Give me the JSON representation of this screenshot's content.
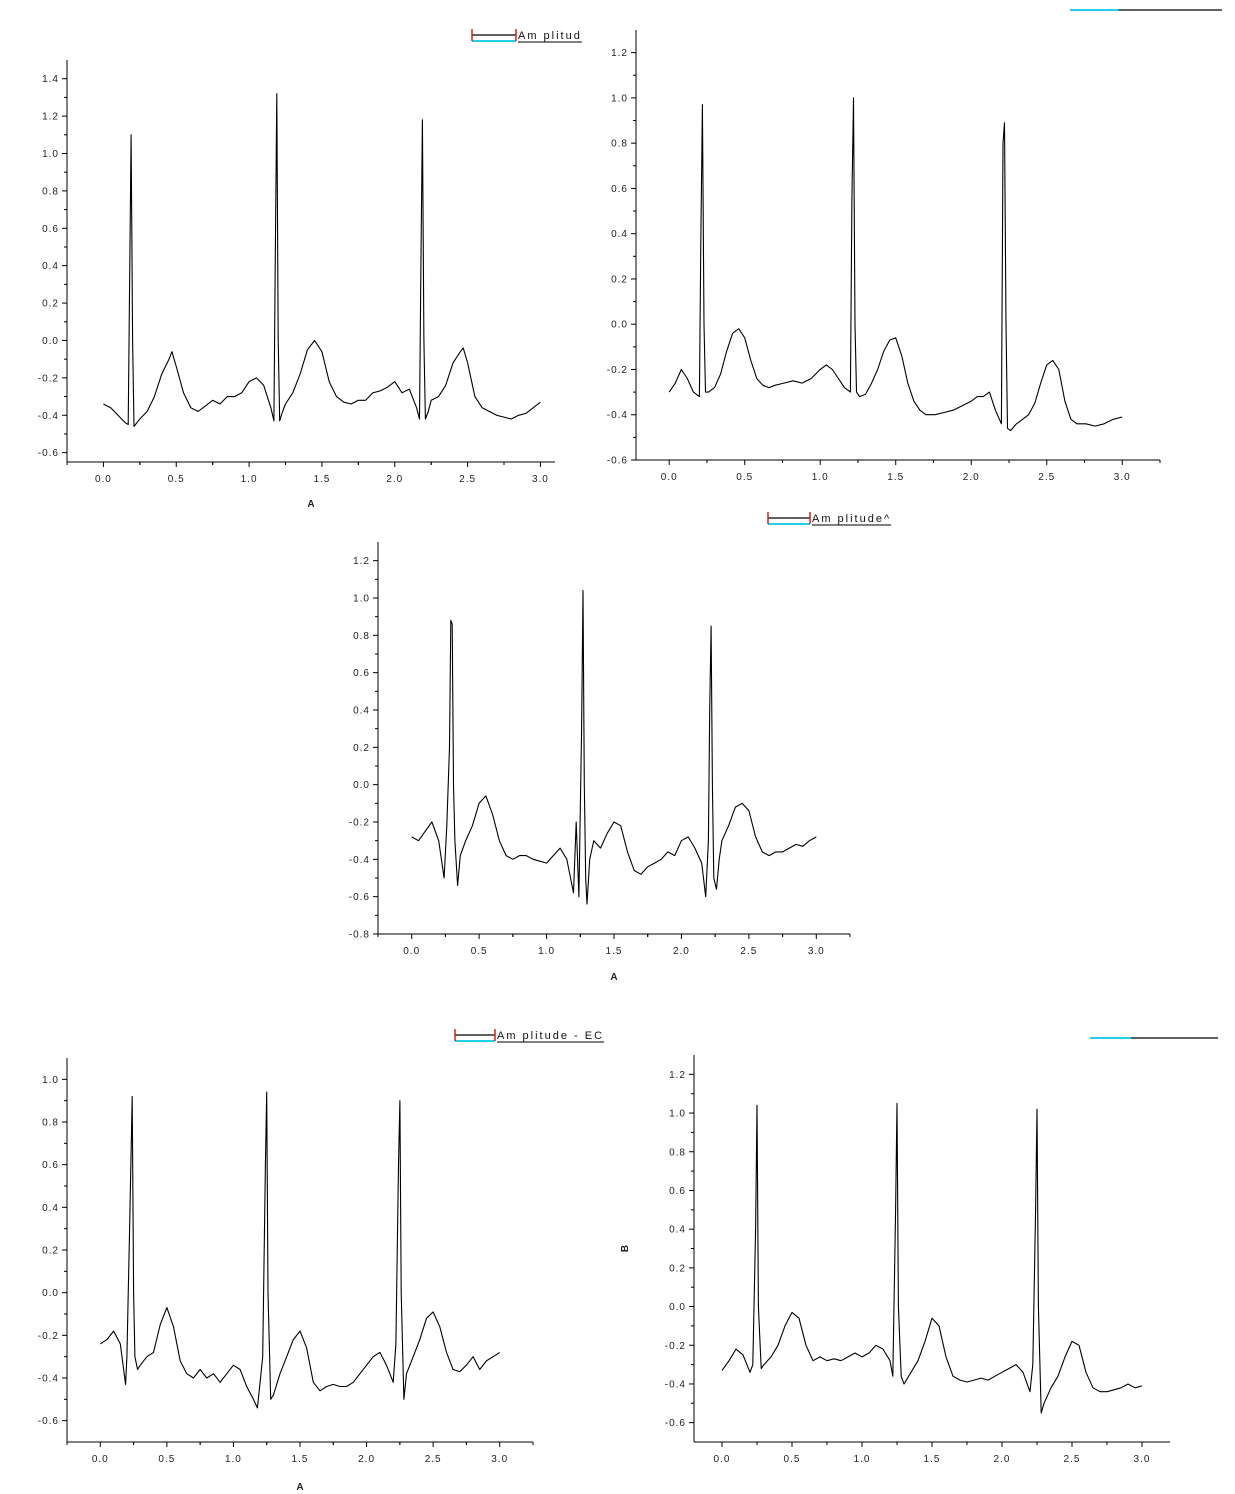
{
  "chart_data": [
    {
      "type": "line",
      "panel": "top-left",
      "xlabel": "A",
      "ylabel": "",
      "xlim": [
        -0.25,
        3.1
      ],
      "ylim": [
        -0.65,
        1.5
      ],
      "x_ticks": [
        "0.0",
        "0.5",
        "1.0",
        "1.5",
        "2.0",
        "2.5",
        "3.0"
      ],
      "y_ticks": [
        "-0.6",
        "-0.4",
        "-0.2",
        "0.0",
        "0.2",
        "0.4",
        "0.6",
        "0.8",
        "1.0",
        "1.2",
        "1.4"
      ],
      "legend": {
        "label": "Am plitud",
        "position": "top-right"
      },
      "series": [
        {
          "x": [
            0.0,
            0.05,
            0.1,
            0.15,
            0.17,
            0.18,
            0.19,
            0.2,
            0.21,
            0.23,
            0.25,
            0.3,
            0.35,
            0.4,
            0.45,
            0.47,
            0.5,
            0.55,
            0.6,
            0.65,
            0.7,
            0.75,
            0.8,
            0.85,
            0.9,
            0.95,
            1.0,
            1.05,
            1.1,
            1.15,
            1.17,
            1.18,
            1.19,
            1.2,
            1.21,
            1.23,
            1.25,
            1.3,
            1.35,
            1.4,
            1.45,
            1.5,
            1.55,
            1.6,
            1.65,
            1.7,
            1.75,
            1.8,
            1.85,
            1.9,
            1.95,
            2.0,
            2.05,
            2.1,
            2.15,
            2.17,
            2.18,
            2.19,
            2.2,
            2.21,
            2.23,
            2.25,
            2.3,
            2.35,
            2.4,
            2.45,
            2.47,
            2.5,
            2.55,
            2.6,
            2.65,
            2.7,
            2.75,
            2.8,
            2.85,
            2.9,
            2.95,
            3.0
          ],
          "y": [
            -0.34,
            -0.36,
            -0.4,
            -0.44,
            -0.45,
            0.3,
            1.1,
            0.0,
            -0.46,
            -0.44,
            -0.42,
            -0.38,
            -0.3,
            -0.18,
            -0.1,
            -0.06,
            -0.14,
            -0.28,
            -0.36,
            -0.38,
            -0.35,
            -0.32,
            -0.34,
            -0.3,
            -0.3,
            -0.28,
            -0.22,
            -0.2,
            -0.24,
            -0.36,
            -0.43,
            0.45,
            1.32,
            0.0,
            -0.43,
            -0.38,
            -0.34,
            -0.28,
            -0.18,
            -0.05,
            0.0,
            -0.06,
            -0.22,
            -0.3,
            -0.33,
            -0.34,
            -0.32,
            -0.32,
            -0.28,
            -0.27,
            -0.25,
            -0.22,
            -0.28,
            -0.26,
            -0.36,
            -0.42,
            0.45,
            1.18,
            0.0,
            -0.42,
            -0.38,
            -0.32,
            -0.3,
            -0.24,
            -0.12,
            -0.06,
            -0.04,
            -0.12,
            -0.3,
            -0.36,
            -0.38,
            -0.4,
            -0.41,
            -0.42,
            -0.4,
            -0.39,
            -0.36,
            -0.33
          ]
        }
      ]
    },
    {
      "type": "line",
      "panel": "top-right",
      "xlabel": "",
      "ylabel": "",
      "xlim": [
        -0.22,
        3.25
      ],
      "ylim": [
        -0.6,
        1.3
      ],
      "x_ticks": [
        "0.0",
        "0.5",
        "1.0",
        "1.5",
        "2.0",
        "2.5",
        "3.0"
      ],
      "y_ticks": [
        "-0.6",
        "-0.4",
        "-0.2",
        "0.0",
        "0.2",
        "0.4",
        "0.6",
        "0.8",
        "1.0",
        "1.2"
      ],
      "legend": {
        "label": "",
        "position": "top-right"
      },
      "series": [
        {
          "x": [
            0.0,
            0.04,
            0.08,
            0.12,
            0.16,
            0.2,
            0.21,
            0.22,
            0.23,
            0.24,
            0.26,
            0.3,
            0.34,
            0.38,
            0.42,
            0.46,
            0.5,
            0.54,
            0.58,
            0.62,
            0.66,
            0.7,
            0.76,
            0.82,
            0.88,
            0.94,
            1.0,
            1.04,
            1.08,
            1.12,
            1.16,
            1.2,
            1.21,
            1.22,
            1.23,
            1.24,
            1.26,
            1.3,
            1.34,
            1.38,
            1.42,
            1.46,
            1.5,
            1.54,
            1.58,
            1.62,
            1.66,
            1.7,
            1.76,
            1.82,
            1.88,
            1.94,
            2.0,
            2.04,
            2.08,
            2.12,
            2.16,
            2.2,
            2.21,
            2.22,
            2.23,
            2.24,
            2.26,
            2.3,
            2.34,
            2.38,
            2.42,
            2.46,
            2.5,
            2.54,
            2.58,
            2.62,
            2.66,
            2.7,
            2.76,
            2.82,
            2.88,
            2.94,
            3.0
          ],
          "y": [
            -0.3,
            -0.26,
            -0.2,
            -0.24,
            -0.3,
            -0.32,
            0.4,
            0.97,
            0.0,
            -0.3,
            -0.3,
            -0.28,
            -0.22,
            -0.12,
            -0.04,
            -0.02,
            -0.06,
            -0.16,
            -0.24,
            -0.27,
            -0.28,
            -0.27,
            -0.26,
            -0.25,
            -0.26,
            -0.24,
            -0.2,
            -0.18,
            -0.2,
            -0.24,
            -0.28,
            -0.3,
            0.55,
            1.0,
            0.0,
            -0.3,
            -0.32,
            -0.31,
            -0.26,
            -0.2,
            -0.12,
            -0.07,
            -0.06,
            -0.14,
            -0.26,
            -0.34,
            -0.38,
            -0.4,
            -0.4,
            -0.39,
            -0.38,
            -0.36,
            -0.34,
            -0.32,
            -0.32,
            -0.3,
            -0.38,
            -0.44,
            0.8,
            0.89,
            0.0,
            -0.46,
            -0.47,
            -0.44,
            -0.42,
            -0.4,
            -0.35,
            -0.26,
            -0.18,
            -0.16,
            -0.2,
            -0.34,
            -0.42,
            -0.44,
            -0.44,
            -0.45,
            -0.44,
            -0.42,
            -0.41
          ]
        }
      ]
    },
    {
      "type": "line",
      "panel": "middle",
      "xlabel": "A",
      "ylabel": "",
      "xlim": [
        -0.25,
        3.25
      ],
      "ylim": [
        -0.8,
        1.3
      ],
      "x_ticks": [
        "0.0",
        "0.5",
        "1.0",
        "1.5",
        "2.0",
        "2.5",
        "3.0"
      ],
      "y_ticks": [
        "-0.8",
        "-0.6",
        "-0.4",
        "-0.2",
        "0.0",
        "0.2",
        "0.4",
        "0.6",
        "0.8",
        "1.0",
        "1.2"
      ],
      "legend": {
        "label": "Am plitude^",
        "position": "top-right"
      },
      "series": [
        {
          "x": [
            0.0,
            0.05,
            0.1,
            0.15,
            0.2,
            0.24,
            0.26,
            0.28,
            0.29,
            0.3,
            0.31,
            0.32,
            0.34,
            0.36,
            0.4,
            0.45,
            0.5,
            0.55,
            0.6,
            0.65,
            0.7,
            0.75,
            0.8,
            0.85,
            0.9,
            0.95,
            1.0,
            1.05,
            1.1,
            1.15,
            1.2,
            1.22,
            1.24,
            1.26,
            1.27,
            1.28,
            1.29,
            1.3,
            1.32,
            1.35,
            1.4,
            1.45,
            1.5,
            1.55,
            1.6,
            1.65,
            1.7,
            1.75,
            1.8,
            1.85,
            1.9,
            1.95,
            2.0,
            2.05,
            2.1,
            2.15,
            2.18,
            2.2,
            2.21,
            2.22,
            2.23,
            2.24,
            2.26,
            2.28,
            2.3,
            2.35,
            2.4,
            2.45,
            2.5,
            2.55,
            2.6,
            2.65,
            2.7,
            2.75,
            2.8,
            2.85,
            2.9,
            2.95,
            3.0
          ],
          "y": [
            -0.28,
            -0.3,
            -0.25,
            -0.2,
            -0.3,
            -0.5,
            -0.22,
            0.2,
            0.88,
            0.86,
            0.0,
            -0.3,
            -0.54,
            -0.38,
            -0.3,
            -0.22,
            -0.1,
            -0.06,
            -0.16,
            -0.3,
            -0.38,
            -0.4,
            -0.38,
            -0.38,
            -0.4,
            -0.41,
            -0.42,
            -0.38,
            -0.34,
            -0.4,
            -0.58,
            -0.2,
            -0.6,
            0.3,
            1.04,
            0.0,
            -0.5,
            -0.64,
            -0.4,
            -0.3,
            -0.34,
            -0.26,
            -0.2,
            -0.22,
            -0.36,
            -0.46,
            -0.48,
            -0.44,
            -0.42,
            -0.4,
            -0.36,
            -0.38,
            -0.3,
            -0.28,
            -0.34,
            -0.42,
            -0.6,
            -0.3,
            0.4,
            0.85,
            0.0,
            -0.5,
            -0.56,
            -0.4,
            -0.3,
            -0.22,
            -0.12,
            -0.1,
            -0.14,
            -0.28,
            -0.36,
            -0.38,
            -0.36,
            -0.36,
            -0.34,
            -0.32,
            -0.33,
            -0.3,
            -0.28
          ]
        }
      ]
    },
    {
      "type": "line",
      "panel": "bottom-left",
      "xlabel": "A",
      "ylabel": "",
      "xlim": [
        -0.25,
        3.25
      ],
      "ylim": [
        -0.7,
        1.1
      ],
      "x_ticks": [
        "0.0",
        "0.5",
        "1.0",
        "1.5",
        "2.0",
        "2.5",
        "3.0"
      ],
      "y_ticks": [
        "-0.6",
        "-0.4",
        "-0.2",
        "0.0",
        "0.2",
        "0.4",
        "0.6",
        "0.8",
        "1.0"
      ],
      "legend": {
        "label": "Am plitude - EC",
        "position": "top-right"
      },
      "series": [
        {
          "x": [
            0.0,
            0.05,
            0.1,
            0.15,
            0.19,
            0.2,
            0.22,
            0.24,
            0.25,
            0.26,
            0.28,
            0.3,
            0.35,
            0.4,
            0.45,
            0.5,
            0.55,
            0.6,
            0.65,
            0.7,
            0.75,
            0.8,
            0.85,
            0.9,
            0.95,
            1.0,
            1.05,
            1.1,
            1.15,
            1.18,
            1.2,
            1.22,
            1.24,
            1.25,
            1.26,
            1.28,
            1.3,
            1.35,
            1.4,
            1.45,
            1.5,
            1.55,
            1.6,
            1.65,
            1.7,
            1.75,
            1.8,
            1.85,
            1.9,
            1.95,
            2.0,
            2.05,
            2.1,
            2.15,
            2.2,
            2.22,
            2.24,
            2.25,
            2.26,
            2.28,
            2.3,
            2.35,
            2.4,
            2.45,
            2.5,
            2.55,
            2.6,
            2.65,
            2.7,
            2.75,
            2.8,
            2.85,
            2.9,
            2.95,
            3.0
          ],
          "y": [
            -0.24,
            -0.22,
            -0.18,
            -0.24,
            -0.43,
            -0.3,
            0.3,
            0.92,
            0.0,
            -0.3,
            -0.36,
            -0.34,
            -0.3,
            -0.28,
            -0.15,
            -0.07,
            -0.16,
            -0.32,
            -0.38,
            -0.4,
            -0.36,
            -0.4,
            -0.38,
            -0.42,
            -0.38,
            -0.34,
            -0.36,
            -0.44,
            -0.5,
            -0.54,
            -0.42,
            -0.3,
            0.6,
            0.94,
            0.0,
            -0.5,
            -0.48,
            -0.38,
            -0.3,
            -0.22,
            -0.18,
            -0.26,
            -0.42,
            -0.46,
            -0.44,
            -0.43,
            -0.44,
            -0.44,
            -0.42,
            -0.38,
            -0.34,
            -0.3,
            -0.28,
            -0.34,
            -0.42,
            -0.24,
            0.6,
            0.9,
            0.0,
            -0.5,
            -0.38,
            -0.3,
            -0.22,
            -0.12,
            -0.09,
            -0.16,
            -0.28,
            -0.36,
            -0.37,
            -0.34,
            -0.3,
            -0.36,
            -0.32,
            -0.3,
            -0.28
          ]
        }
      ]
    },
    {
      "type": "line",
      "panel": "bottom-right",
      "xlabel": "",
      "ylabel": "B",
      "xlim": [
        -0.2,
        3.2
      ],
      "ylim": [
        -0.7,
        1.3
      ],
      "x_ticks": [
        "0.0",
        "0.5",
        "1.0",
        "1.5",
        "2.0",
        "2.5",
        "3.0"
      ],
      "y_ticks": [
        "-0.6",
        "-0.4",
        "-0.2",
        "0.0",
        "0.2",
        "0.4",
        "0.6",
        "0.8",
        "1.0",
        "1.2"
      ],
      "legend": {
        "label": "",
        "position": "top-right"
      },
      "series": [
        {
          "x": [
            0.0,
            0.05,
            0.1,
            0.15,
            0.2,
            0.22,
            0.24,
            0.25,
            0.26,
            0.28,
            0.3,
            0.35,
            0.4,
            0.45,
            0.5,
            0.55,
            0.6,
            0.65,
            0.7,
            0.75,
            0.8,
            0.85,
            0.9,
            0.95,
            1.0,
            1.05,
            1.1,
            1.15,
            1.2,
            1.22,
            1.24,
            1.25,
            1.26,
            1.28,
            1.3,
            1.35,
            1.4,
            1.45,
            1.5,
            1.55,
            1.6,
            1.65,
            1.7,
            1.75,
            1.8,
            1.85,
            1.9,
            1.95,
            2.0,
            2.05,
            2.1,
            2.15,
            2.2,
            2.22,
            2.24,
            2.25,
            2.26,
            2.28,
            2.3,
            2.35,
            2.4,
            2.45,
            2.5,
            2.55,
            2.6,
            2.65,
            2.7,
            2.75,
            2.8,
            2.85,
            2.9,
            2.95,
            3.0
          ],
          "y": [
            -0.33,
            -0.28,
            -0.22,
            -0.25,
            -0.34,
            -0.3,
            0.4,
            1.04,
            0.0,
            -0.32,
            -0.3,
            -0.26,
            -0.2,
            -0.1,
            -0.03,
            -0.06,
            -0.2,
            -0.28,
            -0.26,
            -0.28,
            -0.27,
            -0.28,
            -0.26,
            -0.24,
            -0.26,
            -0.24,
            -0.2,
            -0.22,
            -0.28,
            -0.36,
            0.5,
            1.05,
            0.0,
            -0.36,
            -0.4,
            -0.34,
            -0.28,
            -0.18,
            -0.06,
            -0.1,
            -0.26,
            -0.36,
            -0.38,
            -0.39,
            -0.38,
            -0.37,
            -0.38,
            -0.36,
            -0.34,
            -0.32,
            -0.3,
            -0.34,
            -0.44,
            -0.3,
            0.5,
            1.02,
            0.0,
            -0.55,
            -0.5,
            -0.42,
            -0.36,
            -0.26,
            -0.18,
            -0.2,
            -0.34,
            -0.42,
            -0.44,
            -0.44,
            -0.43,
            -0.42,
            -0.4,
            -0.42,
            -0.41
          ]
        }
      ]
    }
  ],
  "colors": {
    "trace": "#000000",
    "legend_accent_red": "#d62020",
    "legend_accent_cyan": "#22d0e8"
  }
}
